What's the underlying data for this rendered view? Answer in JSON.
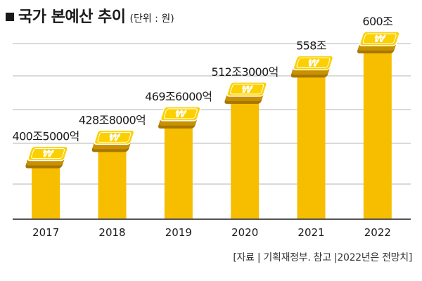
{
  "title": "국가 본예산 추이",
  "unit": "(단위 : 원)",
  "source": "[자료 | 기획재정부. 참고 |2022년은 전망치]",
  "colors": {
    "bar": "#F7BE00",
    "money_top": "#FCD000",
    "money_side": "#C99000",
    "money_dark": "#A67600",
    "grid": "#b5b5b5",
    "axis": "#555555",
    "text": "#1a1a1a"
  },
  "icon": "won-money-stack-icon",
  "chart_data": {
    "type": "bar",
    "categories": [
      "2017",
      "2018",
      "2019",
      "2020",
      "2021",
      "2022"
    ],
    "values": [
      400.5,
      428.8,
      469.6,
      512.3,
      558,
      600
    ],
    "value_labels": [
      "400조5000억",
      "428조8000억",
      "469조6000억",
      "512조3000억",
      "558조",
      "600조"
    ],
    "title": "국가 본예산 추이",
    "ylabel": "",
    "xlabel": "",
    "unit": "원",
    "ylim": [
      295,
      600
    ],
    "grid": true,
    "legend": "none"
  }
}
